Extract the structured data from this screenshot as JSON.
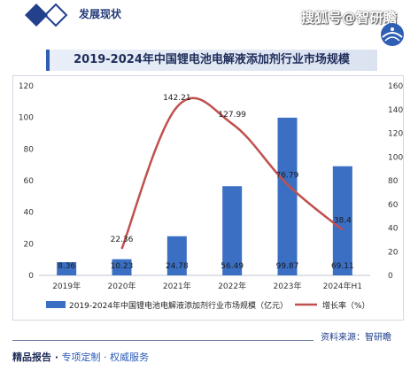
{
  "header": {
    "section_title": "发展现状",
    "watermark": "搜狐号@智研瞻"
  },
  "chart_data": {
    "type": "bar",
    "title": "2019-2024年中国锂电池电解液添加剂行业市场规模",
    "categories": [
      "2019年",
      "2020年",
      "2021年",
      "2022年",
      "2023年",
      "2024年H1"
    ],
    "series": [
      {
        "name": "2019-2024年中国锂电池电解液添加剂行业市场规模（亿元）",
        "type": "bar",
        "axis": "left",
        "color": "#3a6fc4",
        "values": [
          8.36,
          10.23,
          24.78,
          56.49,
          99.87,
          69.11
        ],
        "labels": [
          "8.36",
          "10.23",
          "24.78",
          "56.49",
          "99.87",
          "69.11"
        ]
      },
      {
        "name": "增长率（%）",
        "type": "line",
        "axis": "right",
        "color": "#c0504d",
        "values": [
          null,
          22.36,
          142.21,
          127.99,
          76.79,
          38.4
        ],
        "labels": [
          "",
          "22.36",
          "142.21",
          "127.99",
          "76.79",
          "38.4"
        ]
      }
    ],
    "yleft_ticks": [
      "0",
      "20",
      "40",
      "60",
      "80",
      "100",
      "120"
    ],
    "yright_ticks": [
      "0",
      "20",
      "40",
      "60",
      "80",
      "100",
      "120",
      "140",
      "160"
    ],
    "yleft_lim": [
      0,
      120
    ],
    "yright_lim": [
      0,
      160
    ],
    "legend_position": "bottom",
    "grid": false
  },
  "footer": {
    "source": "资料来源：智研瞻",
    "left_a": "精品报告 ·",
    "left_b": " 专项定制 · 权威服务"
  }
}
